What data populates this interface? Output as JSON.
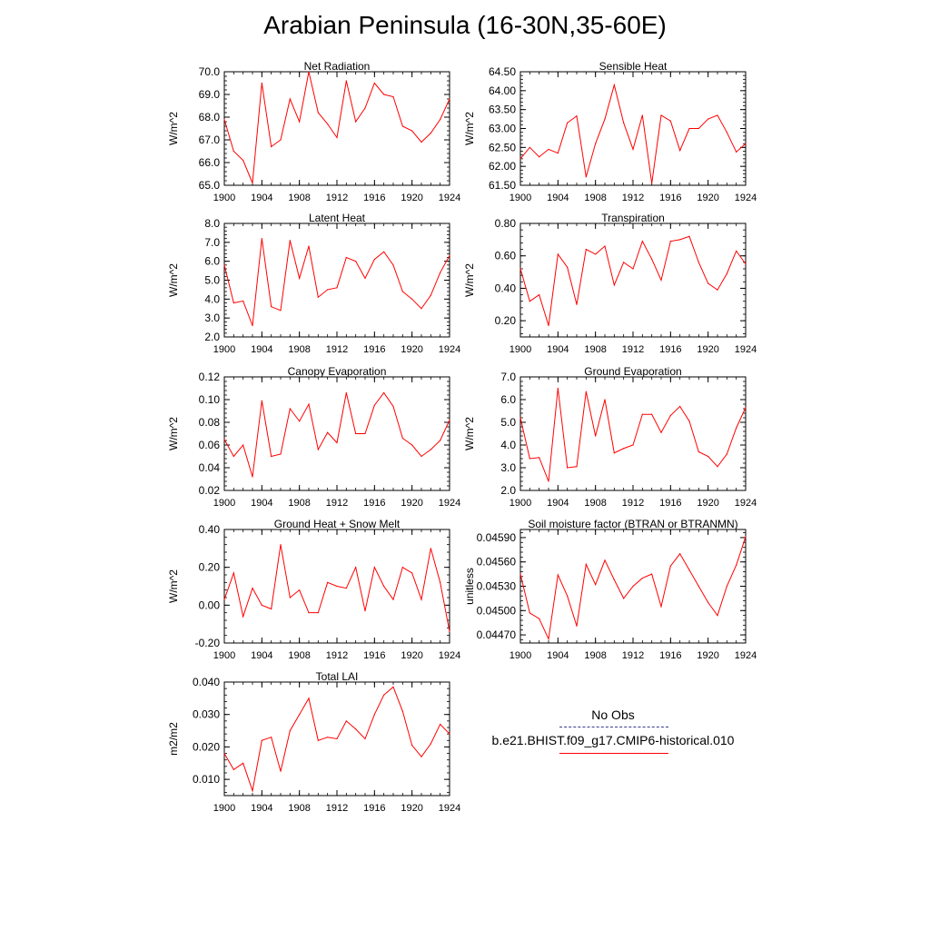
{
  "title": "Arabian Peninsula (16-30N,35-60E)",
  "legend": {
    "obs_label": "No Obs",
    "model_label": "b.e21.BHIST.f09_g17.CMIP6-historical.010",
    "obs_color": "#3a3a8c",
    "model_color": "#ff0000"
  },
  "chart_data": [
    {
      "type": "line",
      "title": "Net Radiation",
      "ylabel": "W/m^2",
      "xlim": [
        1900,
        1924
      ],
      "ylim": [
        65.0,
        70.0
      ],
      "xticks": [
        1900,
        1904,
        1908,
        1912,
        1916,
        1920,
        1924
      ],
      "yticks": [
        65.0,
        66.0,
        67.0,
        68.0,
        69.0,
        70.0
      ],
      "ytick_labels": [
        "65.0",
        "66.0",
        "67.0",
        "68.0",
        "69.0",
        "70.0"
      ],
      "x": [
        1900,
        1901,
        1902,
        1903,
        1904,
        1905,
        1906,
        1907,
        1908,
        1909,
        1910,
        1911,
        1912,
        1913,
        1914,
        1915,
        1916,
        1917,
        1918,
        1919,
        1920,
        1921,
        1922,
        1923,
        1924
      ],
      "series": [
        {
          "values": [
            67.9,
            66.5,
            66.1,
            65.1,
            69.5,
            66.7,
            67.0,
            68.8,
            67.8,
            70.0,
            68.2,
            67.7,
            67.1,
            69.6,
            67.8,
            68.4,
            69.5,
            69.0,
            68.9,
            67.6,
            67.4,
            66.9,
            67.3,
            67.9,
            68.8
          ]
        }
      ]
    },
    {
      "type": "line",
      "title": "Sensible Heat",
      "ylabel": "W/m^2",
      "xlim": [
        1900,
        1924
      ],
      "ylim": [
        61.5,
        64.5
      ],
      "xticks": [
        1900,
        1904,
        1908,
        1912,
        1916,
        1920,
        1924
      ],
      "yticks": [
        61.5,
        62.0,
        62.5,
        63.0,
        63.5,
        64.0,
        64.5
      ],
      "ytick_labels": [
        "61.50",
        "62.00",
        "62.50",
        "63.00",
        "63.50",
        "64.00",
        "64.50"
      ],
      "x": [
        1900,
        1901,
        1902,
        1903,
        1904,
        1905,
        1906,
        1907,
        1908,
        1909,
        1910,
        1911,
        1912,
        1913,
        1914,
        1915,
        1916,
        1917,
        1918,
        1919,
        1920,
        1921,
        1922,
        1923,
        1924
      ],
      "series": [
        {
          "values": [
            62.2,
            62.5,
            62.25,
            62.45,
            62.35,
            63.15,
            63.33,
            61.72,
            62.6,
            63.25,
            64.15,
            63.15,
            62.45,
            63.35,
            61.55,
            63.35,
            63.2,
            62.42,
            63.0,
            63.0,
            63.25,
            63.35,
            62.9,
            62.38,
            62.6
          ]
        }
      ]
    },
    {
      "type": "line",
      "title": "Latent Heat",
      "ylabel": "W/m^2",
      "xlim": [
        1900,
        1924
      ],
      "ylim": [
        2.0,
        8.0
      ],
      "xticks": [
        1900,
        1904,
        1908,
        1912,
        1916,
        1920,
        1924
      ],
      "yticks": [
        2,
        3,
        4,
        5,
        6,
        7,
        8
      ],
      "ytick_labels": [
        "2.0",
        "3.0",
        "4.0",
        "5.0",
        "6.0",
        "7.0",
        "8.0"
      ],
      "x": [
        1900,
        1901,
        1902,
        1903,
        1904,
        1905,
        1906,
        1907,
        1908,
        1909,
        1910,
        1911,
        1912,
        1913,
        1914,
        1915,
        1916,
        1917,
        1918,
        1919,
        1920,
        1921,
        1922,
        1923,
        1924
      ],
      "series": [
        {
          "values": [
            5.8,
            3.8,
            3.9,
            2.6,
            7.2,
            3.6,
            3.4,
            7.1,
            5.1,
            6.8,
            4.1,
            4.5,
            4.6,
            6.2,
            6.0,
            5.1,
            6.1,
            6.5,
            5.8,
            4.4,
            4.0,
            3.5,
            4.2,
            5.4,
            6.3
          ]
        }
      ]
    },
    {
      "type": "line",
      "title": "Transpiration",
      "ylabel": "W/m^2",
      "xlim": [
        1900,
        1924
      ],
      "ylim": [
        0.1,
        0.8
      ],
      "xticks": [
        1900,
        1904,
        1908,
        1912,
        1916,
        1920,
        1924
      ],
      "yticks": [
        0.2,
        0.4,
        0.6,
        0.8
      ],
      "ytick_labels": [
        "0.20",
        "0.40",
        "0.60",
        "0.80"
      ],
      "x": [
        1900,
        1901,
        1902,
        1903,
        1904,
        1905,
        1906,
        1907,
        1908,
        1909,
        1910,
        1911,
        1912,
        1913,
        1914,
        1915,
        1916,
        1917,
        1918,
        1919,
        1920,
        1921,
        1922,
        1923,
        1924
      ],
      "series": [
        {
          "values": [
            0.52,
            0.32,
            0.36,
            0.17,
            0.61,
            0.53,
            0.3,
            0.64,
            0.61,
            0.66,
            0.42,
            0.56,
            0.52,
            0.69,
            0.58,
            0.45,
            0.69,
            0.7,
            0.72,
            0.56,
            0.43,
            0.39,
            0.49,
            0.63,
            0.55
          ]
        }
      ]
    },
    {
      "type": "line",
      "title": "Canopy Evaporation",
      "ylabel": "W/m^2",
      "xlim": [
        1900,
        1924
      ],
      "ylim": [
        0.02,
        0.12
      ],
      "xticks": [
        1900,
        1904,
        1908,
        1912,
        1916,
        1920,
        1924
      ],
      "yticks": [
        0.02,
        0.04,
        0.06,
        0.08,
        0.1,
        0.12
      ],
      "ytick_labels": [
        "0.02",
        "0.04",
        "0.06",
        "0.08",
        "0.10",
        "0.12"
      ],
      "x": [
        1900,
        1901,
        1902,
        1903,
        1904,
        1905,
        1906,
        1907,
        1908,
        1909,
        1910,
        1911,
        1912,
        1913,
        1914,
        1915,
        1916,
        1917,
        1918,
        1919,
        1920,
        1921,
        1922,
        1923,
        1924
      ],
      "series": [
        {
          "values": [
            0.065,
            0.05,
            0.06,
            0.032,
            0.099,
            0.05,
            0.052,
            0.092,
            0.081,
            0.096,
            0.056,
            0.071,
            0.062,
            0.106,
            0.07,
            0.07,
            0.095,
            0.106,
            0.094,
            0.066,
            0.06,
            0.05,
            0.056,
            0.064,
            0.082
          ]
        }
      ]
    },
    {
      "type": "line",
      "title": "Ground Evaporation",
      "ylabel": "W/m^2",
      "xlim": [
        1900,
        1924
      ],
      "ylim": [
        2.0,
        7.0
      ],
      "xticks": [
        1900,
        1904,
        1908,
        1912,
        1916,
        1920,
        1924
      ],
      "yticks": [
        2,
        3,
        4,
        5,
        6,
        7
      ],
      "ytick_labels": [
        "2.0",
        "3.0",
        "4.0",
        "5.0",
        "6.0",
        "7.0"
      ],
      "x": [
        1900,
        1901,
        1902,
        1903,
        1904,
        1905,
        1906,
        1907,
        1908,
        1909,
        1910,
        1911,
        1912,
        1913,
        1914,
        1915,
        1916,
        1917,
        1918,
        1919,
        1920,
        1921,
        1922,
        1923,
        1924
      ],
      "series": [
        {
          "values": [
            5.2,
            3.4,
            3.45,
            2.4,
            6.5,
            3.0,
            3.05,
            6.35,
            4.4,
            6.0,
            3.65,
            3.85,
            4.0,
            5.35,
            5.35,
            4.55,
            5.3,
            5.7,
            5.05,
            3.7,
            3.5,
            3.05,
            3.6,
            4.75,
            5.65
          ]
        }
      ]
    },
    {
      "type": "line",
      "title": "Ground Heat + Snow Melt",
      "ylabel": "W/m^2",
      "xlim": [
        1900,
        1924
      ],
      "ylim": [
        -0.2,
        0.4
      ],
      "xticks": [
        1900,
        1904,
        1908,
        1912,
        1916,
        1920,
        1924
      ],
      "yticks": [
        -0.2,
        0.0,
        0.2,
        0.4
      ],
      "ytick_labels": [
        "-0.20",
        "0.00",
        "0.20",
        "0.40"
      ],
      "x": [
        1900,
        1901,
        1902,
        1903,
        1904,
        1905,
        1906,
        1907,
        1908,
        1909,
        1910,
        1911,
        1912,
        1913,
        1914,
        1915,
        1916,
        1917,
        1918,
        1919,
        1920,
        1921,
        1922,
        1923,
        1924
      ],
      "series": [
        {
          "values": [
            0.03,
            0.17,
            -0.06,
            0.09,
            0.0,
            -0.02,
            0.32,
            0.04,
            0.08,
            -0.04,
            -0.04,
            0.12,
            0.1,
            0.09,
            0.2,
            -0.03,
            0.2,
            0.1,
            0.03,
            0.2,
            0.17,
            0.03,
            0.3,
            0.12,
            -0.14
          ]
        }
      ]
    },
    {
      "type": "line",
      "title": "Soil moisture factor (BTRAN or BTRANMN)",
      "ylabel": "unitless",
      "xlim": [
        1900,
        1924
      ],
      "ylim": [
        0.0446,
        0.046
      ],
      "xticks": [
        1900,
        1904,
        1908,
        1912,
        1916,
        1920,
        1924
      ],
      "yticks": [
        0.0447,
        0.045,
        0.0453,
        0.0456,
        0.0459
      ],
      "ytick_labels": [
        "0.04470",
        "0.04500",
        "0.04530",
        "0.04560",
        "0.04590"
      ],
      "x": [
        1900,
        1901,
        1902,
        1903,
        1904,
        1905,
        1906,
        1907,
        1908,
        1909,
        1910,
        1911,
        1912,
        1913,
        1914,
        1915,
        1916,
        1917,
        1918,
        1919,
        1920,
        1921,
        1922,
        1923,
        1924
      ],
      "series": [
        {
          "values": [
            0.04545,
            0.04497,
            0.0449,
            0.04465,
            0.04544,
            0.04518,
            0.04481,
            0.04557,
            0.04532,
            0.04562,
            0.04538,
            0.04515,
            0.0453,
            0.0454,
            0.04545,
            0.04505,
            0.04555,
            0.0457,
            0.0455,
            0.0453,
            0.0451,
            0.04494,
            0.0453,
            0.04556,
            0.04591
          ]
        }
      ]
    },
    {
      "type": "line",
      "title": "Total LAI",
      "ylabel": "m2/m2",
      "xlim": [
        1900,
        1924
      ],
      "ylim": [
        0.005,
        0.04
      ],
      "xticks": [
        1900,
        1904,
        1908,
        1912,
        1916,
        1920,
        1924
      ],
      "yticks": [
        0.01,
        0.02,
        0.03,
        0.04
      ],
      "ytick_labels": [
        "0.010",
        "0.020",
        "0.030",
        "0.040"
      ],
      "x": [
        1900,
        1901,
        1902,
        1903,
        1904,
        1905,
        1906,
        1907,
        1908,
        1909,
        1910,
        1911,
        1912,
        1913,
        1914,
        1915,
        1916,
        1917,
        1918,
        1919,
        1920,
        1921,
        1922,
        1923,
        1924
      ],
      "series": [
        {
          "values": [
            0.018,
            0.013,
            0.015,
            0.0065,
            0.022,
            0.023,
            0.0125,
            0.025,
            0.03,
            0.035,
            0.022,
            0.023,
            0.0225,
            0.028,
            0.0255,
            0.0225,
            0.03,
            0.036,
            0.0385,
            0.031,
            0.0205,
            0.017,
            0.021,
            0.027,
            0.024
          ]
        }
      ]
    }
  ]
}
